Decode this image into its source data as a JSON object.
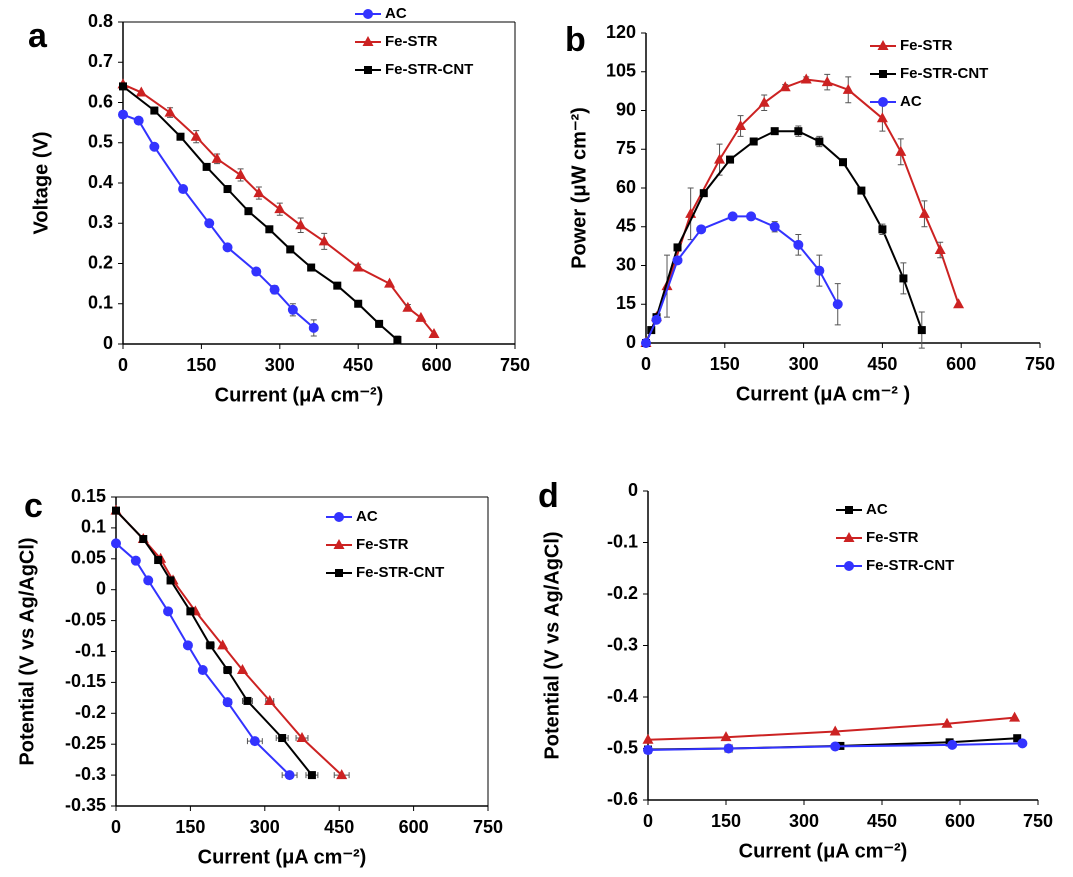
{
  "chart_data": [
    {
      "type": "line",
      "label": "a",
      "xlabel": "Current (μA cm⁻²)",
      "ylabel": "Voltage (V)",
      "xlim": [
        0,
        750
      ],
      "xticks": [
        0,
        150,
        300,
        450,
        600,
        750
      ],
      "ylim": [
        0,
        0.8
      ],
      "yticks": [
        0,
        0.1,
        0.2,
        0.3,
        0.4,
        0.5,
        0.6,
        0.7,
        0.8
      ],
      "legend": "upper right",
      "box": true,
      "series": [
        {
          "name": "AC",
          "color": "#3333ff",
          "marker": "circle",
          "x": [
            0,
            30,
            60,
            115,
            165,
            200,
            255,
            290,
            325,
            365
          ],
          "values": [
            0.57,
            0.555,
            0.49,
            0.385,
            0.3,
            0.24,
            0.18,
            0.135,
            0.085,
            0.04
          ],
          "errors": [
            null,
            null,
            null,
            null,
            null,
            null,
            null,
            0.01,
            0.015,
            0.02
          ]
        },
        {
          "name": "Fe-STR",
          "color": "#cc2222",
          "marker": "triangle",
          "x": [
            0,
            35,
            90,
            140,
            180,
            225,
            260,
            300,
            340,
            385,
            450,
            510,
            545,
            570,
            595
          ],
          "values": [
            0.645,
            0.625,
            0.575,
            0.515,
            0.46,
            0.42,
            0.375,
            0.335,
            0.295,
            0.255,
            0.19,
            0.15,
            0.09,
            0.065,
            0.025
          ],
          "errors": [
            null,
            null,
            0.012,
            0.015,
            0.012,
            0.015,
            0.015,
            0.015,
            0.018,
            0.02,
            0.008,
            null,
            0.008,
            null,
            null
          ]
        },
        {
          "name": "Fe-STR-CNT",
          "color": "#000000",
          "marker": "square",
          "x": [
            0,
            60,
            110,
            160,
            200,
            240,
            280,
            320,
            360,
            410,
            450,
            490,
            525
          ],
          "values": [
            0.64,
            0.58,
            0.515,
            0.44,
            0.385,
            0.33,
            0.285,
            0.235,
            0.19,
            0.145,
            0.1,
            0.05,
            0.01
          ],
          "errors": [
            null,
            null,
            null,
            null,
            null,
            null,
            null,
            null,
            null,
            null,
            null,
            0.008,
            0.01
          ]
        }
      ]
    },
    {
      "type": "line",
      "label": "b",
      "xlabel": "Current (μA cm⁻² )",
      "ylabel": "Power (μW cm⁻²)",
      "xlim": [
        0,
        750
      ],
      "xticks": [
        0,
        150,
        300,
        450,
        600,
        750
      ],
      "ylim": [
        0,
        120
      ],
      "yticks": [
        0,
        15,
        30,
        45,
        60,
        75,
        90,
        105,
        120
      ],
      "legend": "upper right",
      "box": false,
      "series": [
        {
          "name": "Fe-STR",
          "color": "#cc2222",
          "marker": "triangle",
          "x": [
            0,
            20,
            40,
            85,
            140,
            180,
            225,
            265,
            305,
            345,
            385,
            450,
            485,
            530,
            560,
            595
          ],
          "values": [
            0,
            10,
            22,
            50,
            71,
            84,
            93,
            99,
            102,
            101,
            98,
            87,
            74,
            50,
            36,
            15
          ],
          "errors": [
            null,
            null,
            12,
            10,
            6,
            4,
            3,
            1,
            1,
            3,
            5,
            5,
            5,
            5,
            3,
            null
          ]
        },
        {
          "name": "Fe-STR-CNT",
          "color": "#000000",
          "marker": "square",
          "x": [
            0,
            10,
            20,
            60,
            110,
            160,
            205,
            245,
            290,
            330,
            375,
            410,
            450,
            490,
            525
          ],
          "values": [
            0,
            5,
            10,
            37,
            58,
            71,
            78,
            82,
            82,
            78,
            70,
            59,
            44,
            25,
            5
          ],
          "errors": [
            null,
            null,
            null,
            null,
            null,
            null,
            null,
            1,
            2,
            2,
            null,
            null,
            2,
            6,
            7
          ]
        },
        {
          "name": "AC",
          "color": "#3333ff",
          "marker": "circle",
          "x": [
            0,
            20,
            60,
            105,
            165,
            200,
            245,
            290,
            330,
            365
          ],
          "values": [
            0,
            9,
            32,
            44,
            49,
            49,
            45,
            38,
            28,
            15
          ],
          "errors": [
            null,
            null,
            null,
            null,
            null,
            null,
            2,
            4,
            6,
            8
          ]
        }
      ]
    },
    {
      "type": "line",
      "label": "c",
      "xlabel": "Current (μA cm⁻²)",
      "ylabel": "Potential (V vs Ag/AgCl)",
      "xlim": [
        0,
        750
      ],
      "xticks": [
        0,
        150,
        300,
        450,
        600,
        750
      ],
      "ylim": [
        -0.35,
        0.15
      ],
      "yticks": [
        -0.35,
        -0.3,
        -0.25,
        -0.2,
        -0.15,
        -0.1,
        -0.05,
        0,
        0.05,
        0.1,
        0.15
      ],
      "legend": "upper right",
      "box": true,
      "series": [
        {
          "name": "AC",
          "color": "#3333ff",
          "marker": "circle",
          "x": [
            0,
            40,
            65,
            105,
            145,
            175,
            225,
            280,
            350
          ],
          "values": [
            0.075,
            0.047,
            0.015,
            -0.035,
            -0.09,
            -0.13,
            -0.182,
            -0.245,
            -0.3
          ],
          "xerrors": [
            null,
            null,
            null,
            null,
            null,
            null,
            8,
            15,
            15
          ]
        },
        {
          "name": "Fe-STR",
          "color": "#cc2222",
          "marker": "triangle",
          "x": [
            0,
            55,
            90,
            115,
            160,
            215,
            255,
            310,
            375,
            455
          ],
          "values": [
            0.128,
            0.082,
            0.05,
            0.015,
            -0.035,
            -0.09,
            -0.13,
            -0.18,
            -0.24,
            -0.3
          ],
          "xerrors": [
            null,
            null,
            null,
            null,
            null,
            null,
            null,
            8,
            12,
            15
          ]
        },
        {
          "name": "Fe-STR-CNT",
          "color": "#000000",
          "marker": "square",
          "x": [
            0,
            55,
            85,
            110,
            150,
            190,
            225,
            265,
            335,
            395
          ],
          "values": [
            0.128,
            0.082,
            0.048,
            0.015,
            -0.035,
            -0.09,
            -0.13,
            -0.18,
            -0.24,
            -0.3
          ],
          "xerrors": [
            null,
            null,
            null,
            null,
            null,
            8,
            8,
            10,
            12,
            12
          ]
        }
      ]
    },
    {
      "type": "line",
      "label": "d",
      "xlabel": "Current (μA cm⁻²)",
      "ylabel": "Potential (V vs Ag/AgCl)",
      "xlim": [
        0,
        750
      ],
      "xticks": [
        0,
        150,
        300,
        450,
        600,
        750
      ],
      "ylim": [
        -0.6,
        0
      ],
      "yticks": [
        0,
        -0.1,
        -0.2,
        -0.3,
        -0.4,
        -0.5,
        -0.6
      ],
      "legend": "upper right",
      "box": false,
      "series": [
        {
          "name": "AC",
          "color": "#000000",
          "marker": "square",
          "x": [
            0,
            155,
            370,
            580,
            710
          ],
          "values": [
            -0.502,
            -0.5,
            -0.495,
            -0.488,
            -0.48
          ]
        },
        {
          "name": "Fe-STR",
          "color": "#cc2222",
          "marker": "triangle",
          "x": [
            0,
            150,
            360,
            575,
            705
          ],
          "values": [
            -0.483,
            -0.478,
            -0.467,
            -0.452,
            -0.44
          ]
        },
        {
          "name": "Fe-STR-CNT",
          "color": "#3333ff",
          "marker": "circle",
          "x": [
            0,
            155,
            360,
            585,
            720
          ],
          "values": [
            -0.503,
            -0.5,
            -0.496,
            -0.493,
            -0.49
          ]
        }
      ]
    }
  ]
}
